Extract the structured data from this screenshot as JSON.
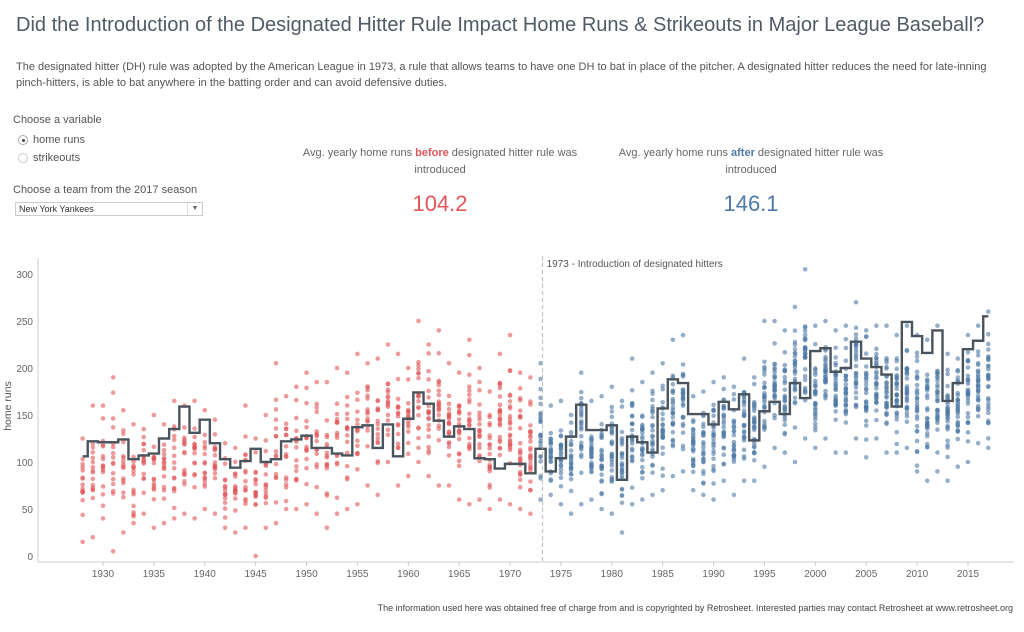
{
  "title": "Did the Introduction of the Designated Hitter Rule Impact Home Runs & Strikeouts in Major League Baseball?",
  "description": "The designated hitter (DH) rule was adopted by the American League in 1973, a rule that allows teams to have one DH to bat in place of the pitcher. A designated hitter reduces the need for late-inning pinch-hitters, is able to bat anywhere in the batting order and can avoid defensive duties.",
  "controls": {
    "variable_label": "Choose a variable",
    "variable_options": [
      {
        "label": "home runs",
        "selected": true
      },
      {
        "label": "strikeouts",
        "selected": false
      }
    ],
    "team_label": "Choose a team from the 2017 season",
    "team_value": "New York Yankees"
  },
  "kpis": [
    {
      "prefix": "Avg. yearly home runs ",
      "highlight": "before",
      "suffix": " designated hitter rule was introduced",
      "value": "104.2",
      "color": "#e15759"
    },
    {
      "prefix": "Avg. yearly home runs ",
      "highlight": "after",
      "suffix": " designated hitter rule was introduced",
      "value": "146.1",
      "color": "#4e79a7"
    }
  ],
  "chart_data": {
    "type": "scatter",
    "ylabel": "home runs",
    "xlabel": "",
    "ylim": [
      0,
      300
    ],
    "xlim": [
      1928,
      2017
    ],
    "x_ticks": [
      1930,
      1935,
      1940,
      1945,
      1950,
      1955,
      1960,
      1965,
      1970,
      1975,
      1980,
      1985,
      1990,
      1995,
      2000,
      2005,
      2010,
      2015
    ],
    "y_ticks": [
      0,
      50,
      100,
      150,
      200,
      250,
      300
    ],
    "grid": false,
    "annotation": {
      "year": 1973,
      "text": "1973 - Introduction of designated hitters"
    },
    "colors": {
      "before": "#e15759",
      "after": "#4e79a7",
      "team_line": "#4a545e"
    },
    "all_teams_range_by_year": {
      "1928": [
        15,
        125
      ],
      "1929": [
        20,
        160
      ],
      "1930": [
        40,
        160
      ],
      "1931": [
        5,
        190
      ],
      "1932": [
        25,
        155
      ],
      "1933": [
        35,
        140
      ],
      "1934": [
        45,
        135
      ],
      "1935": [
        30,
        150
      ],
      "1936": [
        35,
        140
      ],
      "1937": [
        40,
        165
      ],
      "1938": [
        45,
        160
      ],
      "1939": [
        40,
        165
      ],
      "1940": [
        50,
        155
      ],
      "1941": [
        45,
        145
      ],
      "1942": [
        30,
        120
      ],
      "1943": [
        25,
        115
      ],
      "1944": [
        30,
        160
      ],
      "1945": [
        0,
        125
      ],
      "1946": [
        30,
        150
      ],
      "1947": [
        35,
        205
      ],
      "1948": [
        50,
        170
      ],
      "1949": [
        50,
        180
      ],
      "1950": [
        55,
        195
      ],
      "1951": [
        45,
        185
      ],
      "1952": [
        30,
        185
      ],
      "1953": [
        45,
        200
      ],
      "1954": [
        50,
        195
      ],
      "1955": [
        55,
        215
      ],
      "1956": [
        75,
        205
      ],
      "1957": [
        65,
        210
      ],
      "1958": [
        100,
        225
      ],
      "1959": [
        75,
        215
      ],
      "1960": [
        85,
        200
      ],
      "1961": [
        100,
        250
      ],
      "1962": [
        85,
        225
      ],
      "1963": [
        75,
        240
      ],
      "1964": [
        75,
        205
      ],
      "1965": [
        60,
        195
      ],
      "1966": [
        55,
        230
      ],
      "1967": [
        60,
        200
      ],
      "1968": [
        50,
        175
      ],
      "1969": [
        60,
        215
      ],
      "1970": [
        55,
        235
      ],
      "1971": [
        50,
        195
      ],
      "1972": [
        45,
        190
      ],
      "1973": [
        60,
        205
      ],
      "1974": [
        65,
        160
      ],
      "1975": [
        55,
        165
      ],
      "1976": [
        45,
        150
      ],
      "1977": [
        55,
        195
      ],
      "1978": [
        60,
        165
      ],
      "1979": [
        50,
        170
      ],
      "1980": [
        45,
        180
      ],
      "1981": [
        25,
        165
      ],
      "1982": [
        55,
        210
      ],
      "1983": [
        60,
        185
      ],
      "1984": [
        65,
        195
      ],
      "1985": [
        70,
        205
      ],
      "1986": [
        85,
        230
      ],
      "1987": [
        90,
        235
      ],
      "1988": [
        70,
        170
      ],
      "1989": [
        65,
        175
      ],
      "1990": [
        60,
        185
      ],
      "1991": [
        80,
        190
      ],
      "1992": [
        65,
        180
      ],
      "1993": [
        80,
        210
      ],
      "1994": [
        80,
        190
      ],
      "1995": [
        95,
        250
      ],
      "1996": [
        115,
        250
      ],
      "1997": [
        110,
        240
      ],
      "1998": [
        100,
        265
      ],
      "1999": [
        125,
        305
      ],
      "2000": [
        115,
        245
      ],
      "2001": [
        125,
        250
      ],
      "2002": [
        110,
        240
      ],
      "2003": [
        110,
        245
      ],
      "2004": [
        125,
        270
      ],
      "2005": [
        105,
        240
      ],
      "2006": [
        125,
        245
      ],
      "2007": [
        110,
        245
      ],
      "2008": [
        110,
        235
      ],
      "2009": [
        115,
        245
      ],
      "2010": [
        90,
        235
      ],
      "2011": [
        80,
        230
      ],
      "2012": [
        90,
        245
      ],
      "2013": [
        80,
        215
      ],
      "2014": [
        95,
        210
      ],
      "2015": [
        100,
        235
      ],
      "2016": [
        120,
        245
      ],
      "2017": [
        115,
        260
      ]
    },
    "team_series": {
      "name": "New York Yankees",
      "years": [
        1928,
        1929,
        1930,
        1931,
        1932,
        1933,
        1934,
        1935,
        1936,
        1937,
        1938,
        1939,
        1940,
        1941,
        1942,
        1943,
        1944,
        1945,
        1946,
        1947,
        1948,
        1949,
        1950,
        1951,
        1952,
        1953,
        1954,
        1955,
        1956,
        1957,
        1958,
        1959,
        1960,
        1961,
        1962,
        1963,
        1964,
        1965,
        1966,
        1967,
        1968,
        1969,
        1970,
        1971,
        1972,
        1973,
        1974,
        1975,
        1976,
        1977,
        1978,
        1979,
        1980,
        1981,
        1982,
        1983,
        1984,
        1985,
        1986,
        1987,
        1988,
        1989,
        1990,
        1991,
        1992,
        1993,
        1994,
        1995,
        1996,
        1997,
        1998,
        1999,
        2000,
        2001,
        2002,
        2003,
        2004,
        2005,
        2006,
        2007,
        2008,
        2009,
        2010,
        2011,
        2012,
        2013,
        2014,
        2015,
        2016,
        2017
      ],
      "values": [
        106,
        122,
        121,
        121,
        124,
        103,
        107,
        109,
        125,
        135,
        159,
        131,
        145,
        120,
        103,
        94,
        101,
        114,
        100,
        103,
        122,
        124,
        128,
        115,
        115,
        109,
        107,
        137,
        139,
        115,
        140,
        106,
        146,
        174,
        162,
        144,
        127,
        138,
        135,
        104,
        103,
        93,
        98,
        98,
        88,
        114,
        90,
        104,
        127,
        161,
        134,
        134,
        139,
        81,
        127,
        121,
        110,
        157,
        188,
        184,
        151,
        151,
        140,
        164,
        156,
        172,
        123,
        154,
        164,
        151,
        184,
        168,
        218,
        221,
        196,
        200,
        228,
        210,
        201,
        193,
        159,
        249,
        234,
        216,
        240,
        165,
        184,
        220,
        229,
        255
      ]
    }
  },
  "footer": "The information used here was obtained free of charge from and is copyrighted by Retrosheet. Interested parties may contact Retrosheet at www.retrosheet.org"
}
